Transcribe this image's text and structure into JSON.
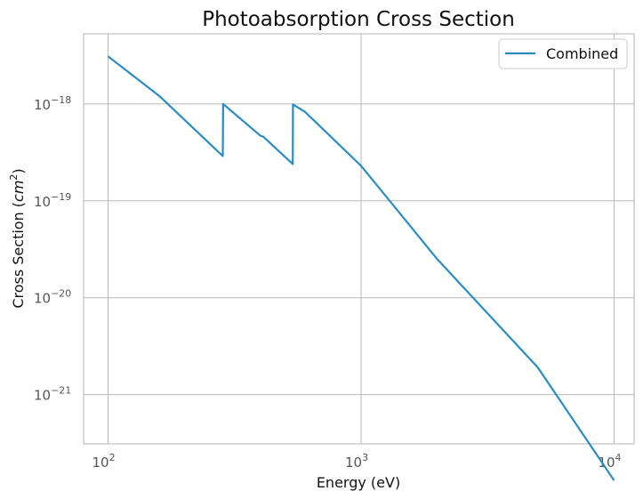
{
  "chart_data": {
    "type": "line",
    "title": "Photoabsorption Cross Section",
    "xlabel": "Energy (eV)",
    "ylabel": {
      "prefix": "Cross Section (",
      "unit": "cm",
      "power": "2",
      "suffix": ")"
    },
    "xscale": "log",
    "yscale": "log",
    "xlim": [
      80,
      12000
    ],
    "ylim": [
      3.1e-22,
      5.3e-18
    ],
    "grid": true,
    "legend": {
      "position": "top-right"
    },
    "x_ticks": [
      {
        "value": 100,
        "base": "10",
        "exp": "2"
      },
      {
        "value": 1000,
        "base": "10",
        "exp": "3"
      },
      {
        "value": 10000,
        "base": "10",
        "exp": "4"
      }
    ],
    "y_ticks": [
      {
        "value": 1e-18,
        "base": "10",
        "exp": "−18"
      },
      {
        "value": 1e-19,
        "base": "10",
        "exp": "−19"
      },
      {
        "value": 1e-20,
        "base": "10",
        "exp": "−20"
      },
      {
        "value": 1e-21,
        "base": "10",
        "exp": "−21"
      }
    ],
    "series": [
      {
        "name": "Combined",
        "color": "#2b8cc4",
        "points": [
          [
            100,
            3.1e-18
          ],
          [
            160,
            1.2e-18
          ],
          [
            284,
            2.9e-19
          ],
          [
            285,
            1e-18
          ],
          [
            400,
            4.7e-19
          ],
          [
            410,
            4.6e-19
          ],
          [
            537,
            2.4e-19
          ],
          [
            538,
            9.9e-19
          ],
          [
            600,
            8.3e-19
          ],
          [
            1000,
            2.3e-19
          ],
          [
            2000,
            2.5e-20
          ],
          [
            5000,
            1.9e-21
          ],
          [
            10000,
            1.3e-22
          ]
        ]
      }
    ]
  }
}
